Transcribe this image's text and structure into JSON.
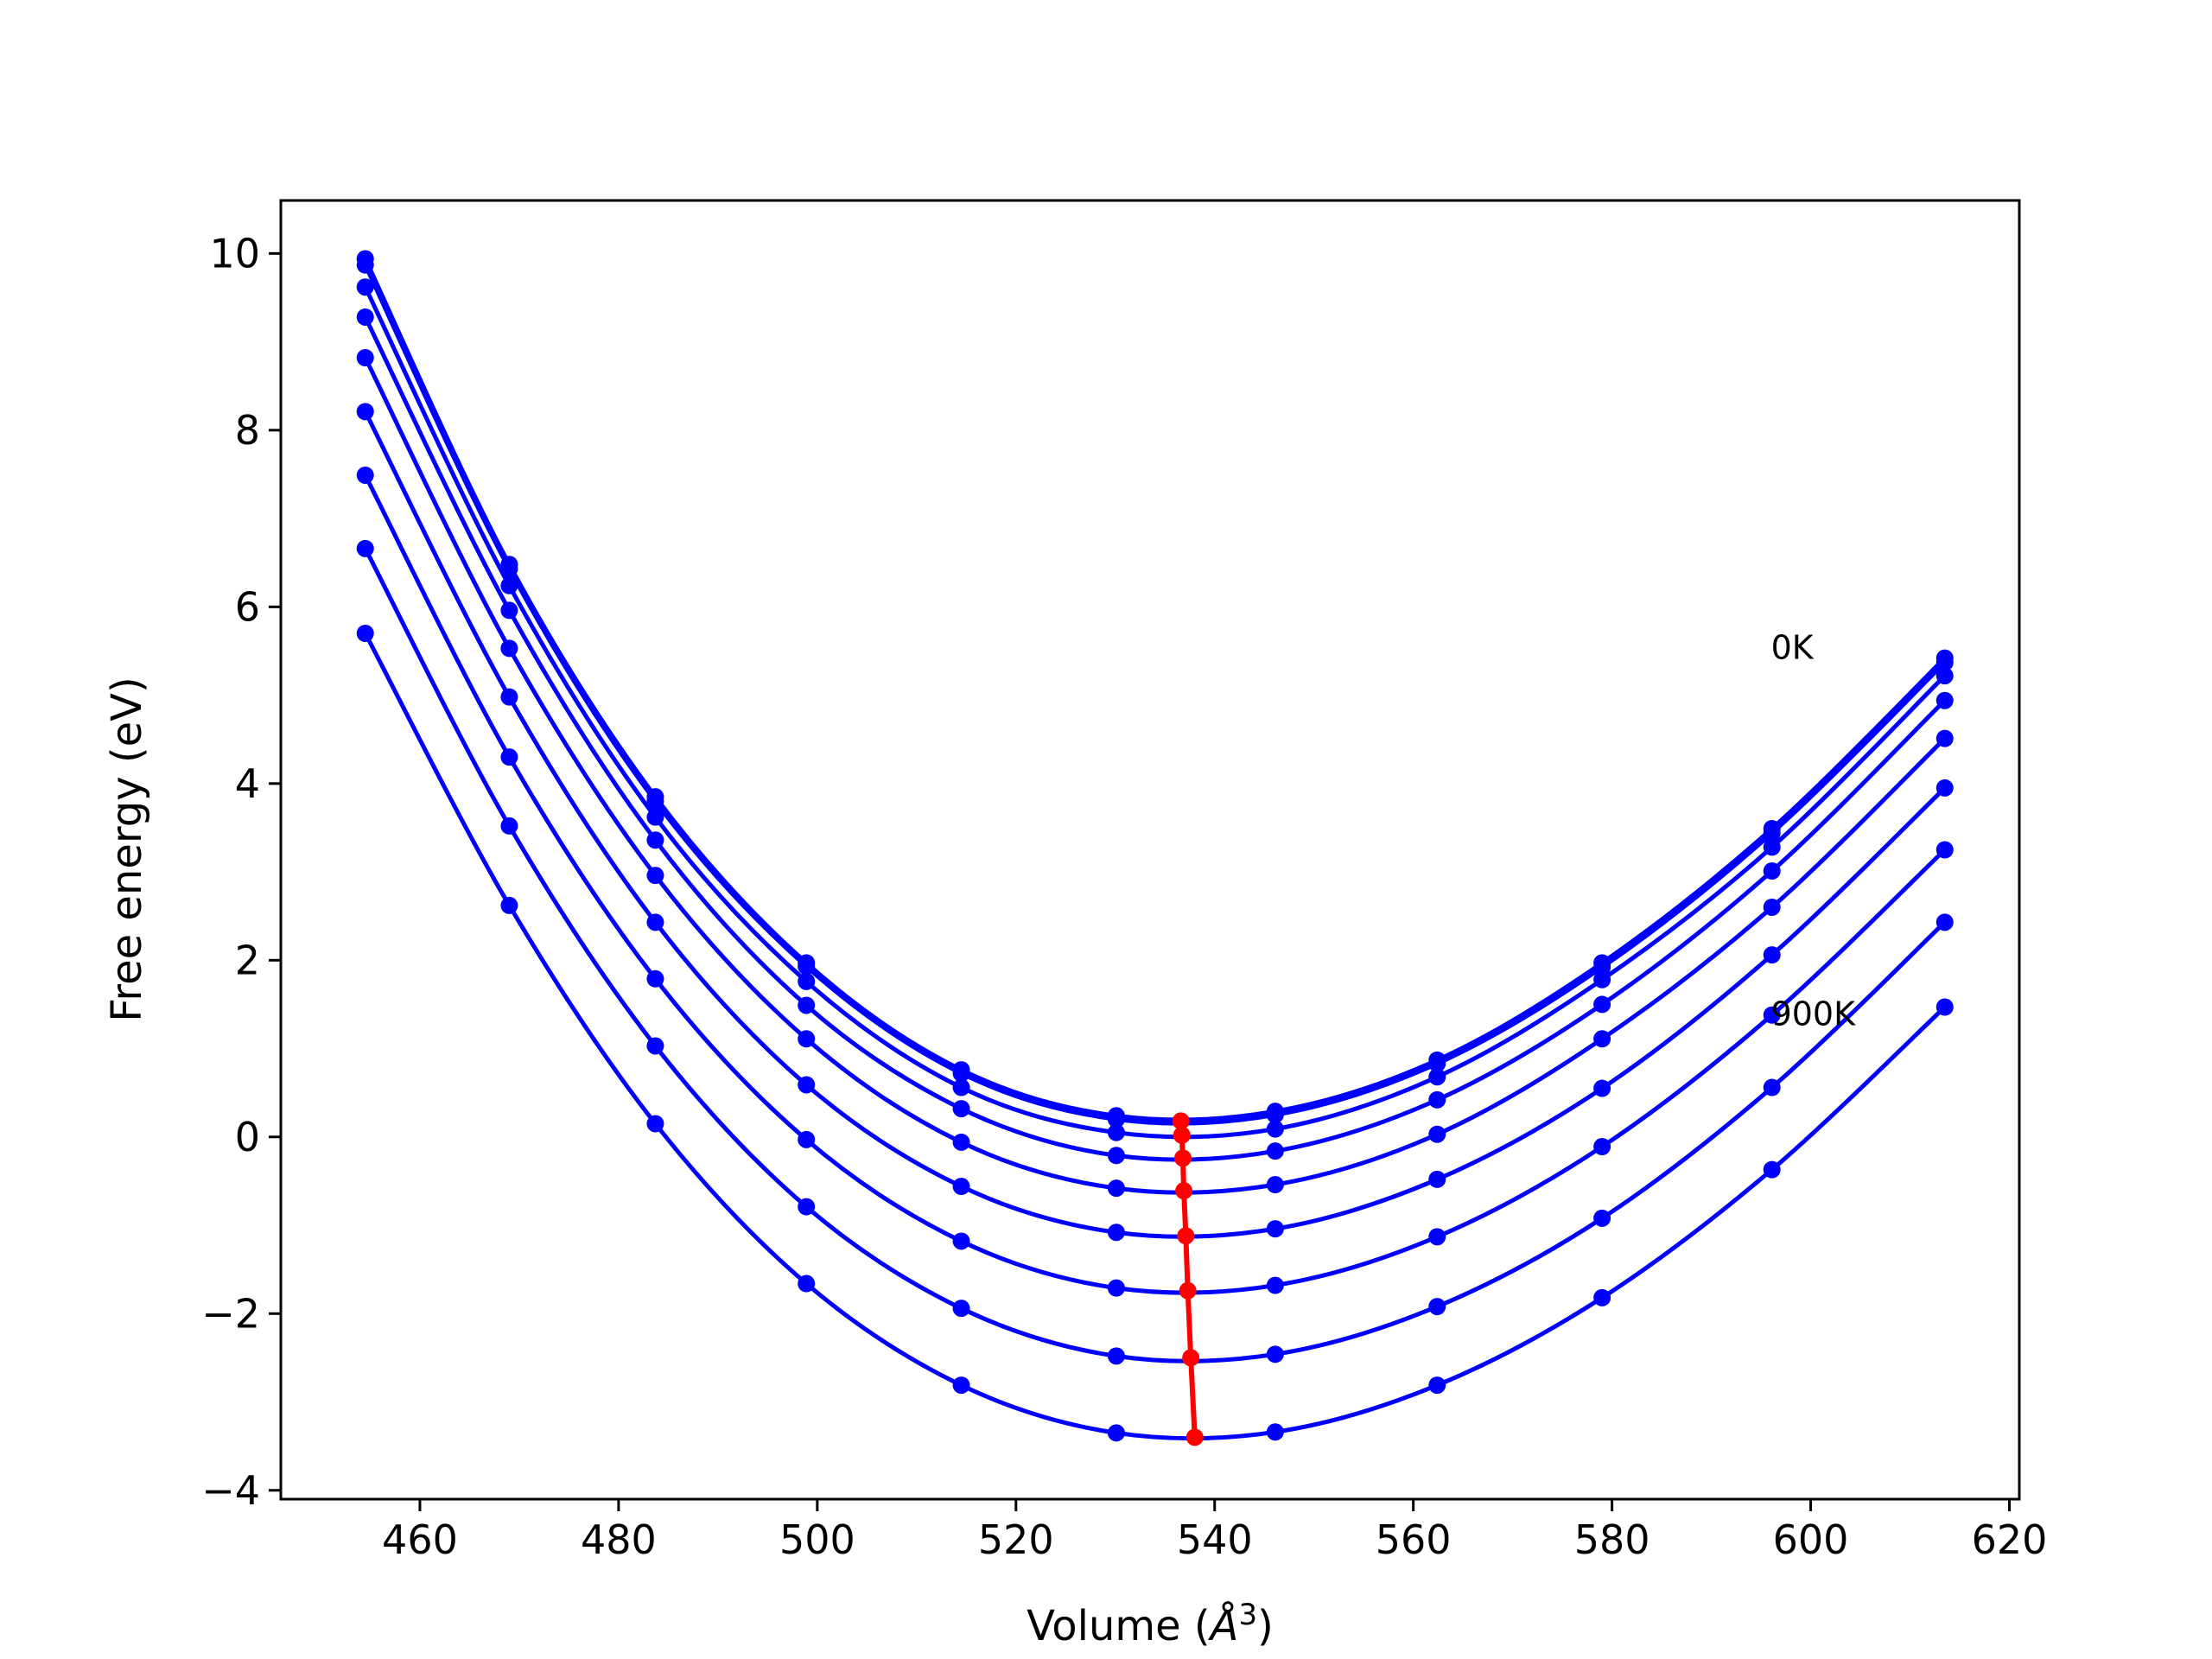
{
  "chart_data": {
    "type": "line",
    "title": "",
    "xlabel": "Volume (Å³)",
    "xlabel_parts": {
      "base": "Volume (",
      "sym": "Å",
      "sup": "3",
      "close": ")"
    },
    "ylabel": "Free energy (eV)",
    "xlim": [
      446,
      621
    ],
    "ylim": [
      -4.1,
      10.6
    ],
    "xticks": [
      460,
      480,
      500,
      520,
      540,
      560,
      580,
      600,
      620
    ],
    "yticks": [
      -4,
      -2,
      0,
      2,
      4,
      6,
      8,
      10
    ],
    "ytick_labels": [
      "−4",
      "−2",
      "0",
      "2",
      "4",
      "6",
      "8",
      "10"
    ],
    "grid": false,
    "colors": {
      "curves": "#0000ff",
      "minimum_line": "#ff0000"
    },
    "x": [
      454.5,
      469.0,
      483.7,
      498.9,
      514.5,
      530.1,
      546.1,
      562.4,
      579.0,
      596.1,
      613.5
    ],
    "series": [
      {
        "values": [
          9.94,
          6.48,
          3.85,
          1.97,
          0.76,
          0.24,
          0.29,
          0.87,
          1.97,
          3.49,
          5.42
        ]
      },
      {
        "values": [
          9.87,
          6.43,
          3.8,
          1.93,
          0.72,
          0.2,
          0.25,
          0.83,
          1.92,
          3.44,
          5.37
        ]
      },
      {
        "values": [
          9.62,
          6.24,
          3.62,
          1.76,
          0.56,
          0.05,
          0.09,
          0.68,
          1.78,
          3.28,
          5.22
        ]
      },
      {
        "values": [
          9.28,
          5.96,
          3.36,
          1.49,
          0.32,
          -0.21,
          -0.16,
          0.42,
          1.5,
          3.01,
          4.94
        ]
      },
      {
        "values": [
          8.82,
          5.53,
          2.96,
          1.11,
          -0.06,
          -0.58,
          -0.54,
          0.03,
          1.11,
          2.6,
          4.51
        ]
      },
      {
        "values": [
          8.21,
          4.98,
          2.43,
          0.59,
          -0.56,
          -1.08,
          -1.04,
          -0.48,
          0.55,
          2.06,
          3.95
        ]
      },
      {
        "values": [
          7.49,
          4.3,
          1.79,
          -0.03,
          -1.18,
          -1.71,
          -1.68,
          -1.13,
          -0.11,
          1.38,
          3.25
        ]
      },
      {
        "values": [
          6.66,
          3.52,
          1.03,
          -0.79,
          -1.94,
          -2.48,
          -2.46,
          -1.92,
          -0.92,
          0.56,
          2.43
        ]
      },
      {
        "values": [
          5.7,
          2.62,
          0.15,
          -1.66,
          -2.81,
          -3.35,
          -3.34,
          -2.81,
          -1.82,
          -0.37,
          1.47
        ]
      }
    ],
    "minimum_series": {
      "x": [
        536.6,
        536.7,
        536.8,
        536.9,
        537.1,
        537.3,
        537.6,
        538.0
      ],
      "y": [
        0.18,
        0.02,
        -0.24,
        -0.61,
        -1.12,
        -1.74,
        -2.5,
        -3.4
      ]
    },
    "annotations": [
      {
        "text": "0K",
        "x": 596.0,
        "y": 5.55
      },
      {
        "text": "900K",
        "x": 596.0,
        "y": 1.4
      }
    ]
  }
}
